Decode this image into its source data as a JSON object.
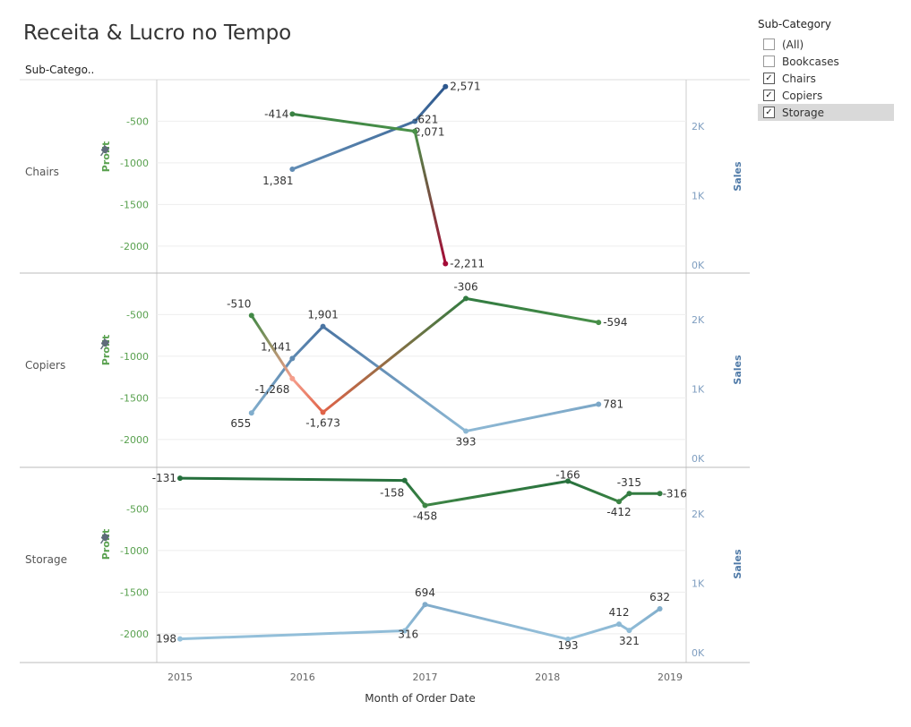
{
  "title": "Receita & Lucro no Tempo",
  "row_header": "Sub-Catego..",
  "x_axis_title": "Month of Order Date",
  "filter": {
    "title": "Sub-Category",
    "items": [
      {
        "label": "(All)",
        "checked": false,
        "highlighted": false
      },
      {
        "label": "Bookcases",
        "checked": false,
        "highlighted": false
      },
      {
        "label": "Chairs",
        "checked": true,
        "highlighted": false
      },
      {
        "label": "Copiers",
        "checked": true,
        "highlighted": false
      },
      {
        "label": "Storage",
        "checked": true,
        "highlighted": true
      }
    ]
  },
  "colors": {
    "profit_axis": "#59a14f",
    "sales_axis": "#4e79a7",
    "gridline": "#eeeeee",
    "border": "#bbbbbb",
    "tick_text": "#666666"
  },
  "chart_data": {
    "type": "line",
    "x_ticks": [
      "2015",
      "2016",
      "2017",
      "2018",
      "2019"
    ],
    "profit_axis": {
      "label": "Profit",
      "ticks": [
        "-500",
        "-1000",
        "-1500",
        "-2000"
      ],
      "range": [
        -2320,
        0
      ]
    },
    "sales_axis": {
      "label": "Sales",
      "ticks": [
        "2K",
        "1K",
        "0K"
      ],
      "range": [
        0,
        2600
      ]
    },
    "panels": [
      {
        "name": "Chairs",
        "profit": [
          {
            "x": "2015-12",
            "y": -414,
            "label": "-414"
          },
          {
            "x": "2016-12",
            "y": -621,
            "label": "-621"
          },
          {
            "x": "2017-03",
            "y": -2211,
            "label": "-2,211"
          }
        ],
        "sales": [
          {
            "x": "2015-12",
            "y": 1381,
            "label": "1,381"
          },
          {
            "x": "2016-12",
            "y": 2071,
            "label": "2,071"
          },
          {
            "x": "2017-03",
            "y": 2571,
            "label": "2,571"
          }
        ]
      },
      {
        "name": "Copiers",
        "profit": [
          {
            "x": "2015-08",
            "y": -510,
            "label": "-510"
          },
          {
            "x": "2015-12",
            "y": -1268,
            "label": "-1,268"
          },
          {
            "x": "2016-03",
            "y": -1673,
            "label": "-1,673"
          },
          {
            "x": "2017-05",
            "y": -306,
            "label": "-306"
          },
          {
            "x": "2018-06",
            "y": -594,
            "label": "-594"
          }
        ],
        "sales": [
          {
            "x": "2015-08",
            "y": 655,
            "label": "655"
          },
          {
            "x": "2015-12",
            "y": 1441,
            "label": "1,441"
          },
          {
            "x": "2016-03",
            "y": 1901,
            "label": "1,901"
          },
          {
            "x": "2017-05",
            "y": 393,
            "label": "393"
          },
          {
            "x": "2018-06",
            "y": 781,
            "label": "781"
          }
        ]
      },
      {
        "name": "Storage",
        "profit": [
          {
            "x": "2015-01",
            "y": -131,
            "label": "-131"
          },
          {
            "x": "2016-11",
            "y": -158,
            "label": "-158"
          },
          {
            "x": "2017-01",
            "y": -458,
            "label": "-458"
          },
          {
            "x": "2018-03",
            "y": -166,
            "label": "-166"
          },
          {
            "x": "2018-08",
            "y": -412,
            "label": "-412"
          },
          {
            "x": "2018-09",
            "y": -315,
            "label": "-315"
          },
          {
            "x": "2018-12",
            "y": -316,
            "label": "-316"
          }
        ],
        "sales": [
          {
            "x": "2015-01",
            "y": 198,
            "label": "198"
          },
          {
            "x": "2016-11",
            "y": 316,
            "label": "316"
          },
          {
            "x": "2017-01",
            "y": 694,
            "label": "694"
          },
          {
            "x": "2018-03",
            "y": 193,
            "label": "193"
          },
          {
            "x": "2018-08",
            "y": 412,
            "label": "412"
          },
          {
            "x": "2018-09",
            "y": 321,
            "label": "321"
          },
          {
            "x": "2018-12",
            "y": 632,
            "label": "632"
          }
        ]
      }
    ]
  }
}
